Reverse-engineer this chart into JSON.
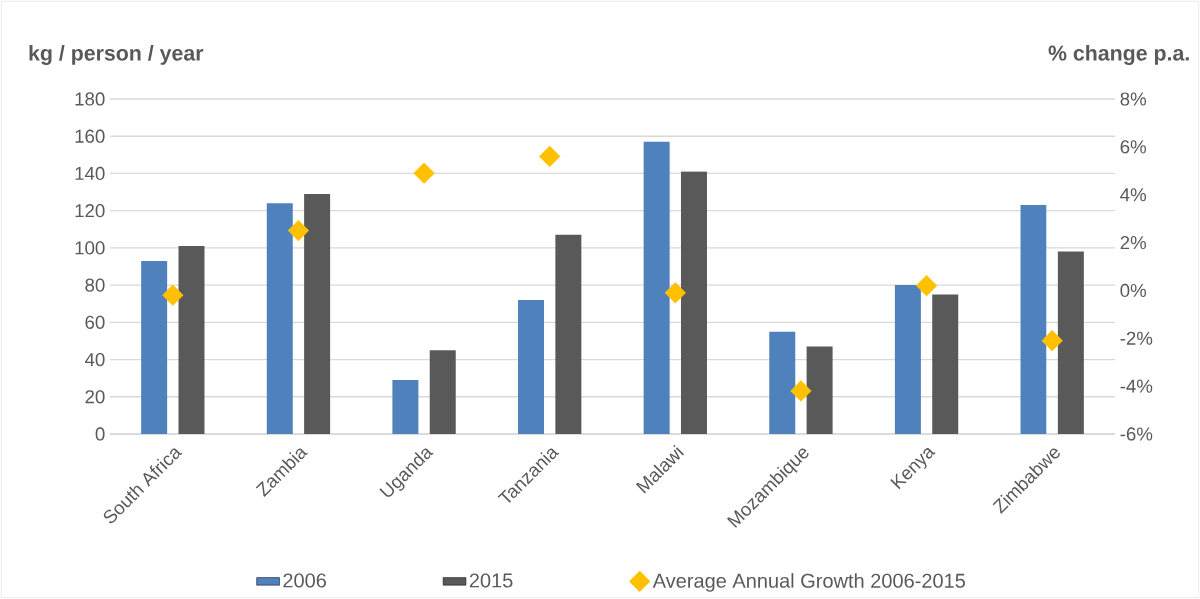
{
  "chart_data": {
    "type": "bar",
    "ylabel": "kg / person / year",
    "y2label": "% change p.a.",
    "categories": [
      "South Africa",
      "Zambia",
      "Uganda",
      "Tanzania",
      "Malawi",
      "Mozambique",
      "Kenya",
      "Zimbabwe"
    ],
    "series": [
      {
        "name": "2006",
        "color": "#4f81bd",
        "values": [
          93,
          124,
          29,
          72,
          157,
          55,
          80,
          123
        ]
      },
      {
        "name": "2015",
        "color": "#595959",
        "values": [
          101,
          129,
          45,
          107,
          141,
          47,
          75,
          98
        ]
      },
      {
        "name": "Average Annual Growth 2006-2015",
        "type": "scatter",
        "axis": "y2",
        "marker": "diamond",
        "color": "#ffc000",
        "values": [
          -0.2,
          2.5,
          4.9,
          5.6,
          -0.1,
          -4.2,
          0.2,
          -2.1
        ]
      }
    ],
    "ylim": [
      0,
      180
    ],
    "yticks": [
      0,
      20,
      40,
      60,
      80,
      100,
      120,
      140,
      160,
      180
    ],
    "y2lim": [
      -6,
      8
    ],
    "y2ticks": [
      {
        "value": -6,
        "label": "-6%"
      },
      {
        "value": -4,
        "label": "-4%"
      },
      {
        "value": -2,
        "label": "-2%"
      },
      {
        "value": 0,
        "label": "0%"
      },
      {
        "value": 2,
        "label": "2%"
      },
      {
        "value": 4,
        "label": "4%"
      },
      {
        "value": 6,
        "label": "6%"
      },
      {
        "value": 8,
        "label": "8%"
      }
    ],
    "grid": "y",
    "legend": "bottom"
  }
}
